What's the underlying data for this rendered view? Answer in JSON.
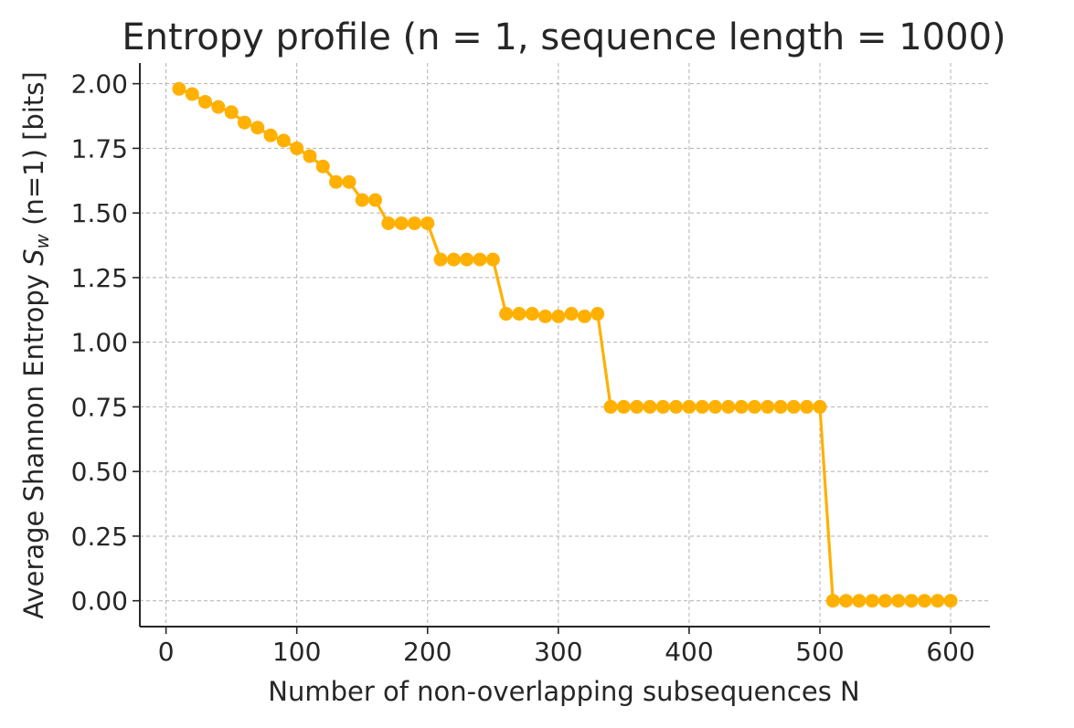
{
  "chart_data": {
    "type": "line",
    "title": "Entropy profile (n = 1, sequence length = 1000)",
    "xlabel": "Number of non-overlapping subsequences N",
    "ylabel": {
      "prefix": "Average Shannon Entropy ",
      "symbol": "S",
      "subscript": "w",
      "suffix": " (n=1) [bits]"
    },
    "xlim": [
      -20,
      630
    ],
    "ylim": [
      -0.1,
      2.08
    ],
    "xticks": [
      0,
      100,
      200,
      300,
      400,
      500,
      600
    ],
    "xtick_labels": [
      "0",
      "100",
      "200",
      "300",
      "400",
      "500",
      "600"
    ],
    "yticks": [
      0,
      0.25,
      0.5,
      0.75,
      1.0,
      1.25,
      1.5,
      1.75,
      2.0
    ],
    "ytick_labels": [
      "0.00",
      "0.25",
      "0.50",
      "0.75",
      "1.00",
      "1.25",
      "1.50",
      "1.75",
      "2.00"
    ],
    "grid": true,
    "series": [
      {
        "color": "#FFB000",
        "marker": "circle",
        "x": [
          10,
          20,
          30,
          40,
          50,
          60,
          70,
          80,
          90,
          100,
          110,
          120,
          130,
          140,
          150,
          160,
          170,
          180,
          190,
          200,
          210,
          220,
          230,
          240,
          250,
          260,
          270,
          280,
          290,
          300,
          310,
          320,
          330,
          340,
          350,
          360,
          370,
          380,
          390,
          400,
          410,
          420,
          430,
          440,
          450,
          460,
          470,
          480,
          490,
          500,
          510,
          520,
          530,
          540,
          550,
          560,
          570,
          580,
          590,
          600
        ],
        "y": [
          1.98,
          1.96,
          1.93,
          1.91,
          1.89,
          1.85,
          1.83,
          1.8,
          1.78,
          1.75,
          1.72,
          1.68,
          1.62,
          1.62,
          1.55,
          1.55,
          1.46,
          1.46,
          1.46,
          1.46,
          1.32,
          1.32,
          1.32,
          1.32,
          1.32,
          1.11,
          1.11,
          1.11,
          1.1,
          1.1,
          1.11,
          1.1,
          1.11,
          0.75,
          0.75,
          0.75,
          0.75,
          0.75,
          0.75,
          0.75,
          0.75,
          0.75,
          0.75,
          0.75,
          0.75,
          0.75,
          0.75,
          0.75,
          0.75,
          0.75,
          0.0,
          0.0,
          0.0,
          0.0,
          0.0,
          0.0,
          0.0,
          0.0,
          0.0,
          0.0
        ]
      }
    ]
  },
  "colors": {
    "series": "#FFB000",
    "axis": "#262626",
    "grid": "#b0b0b0"
  }
}
